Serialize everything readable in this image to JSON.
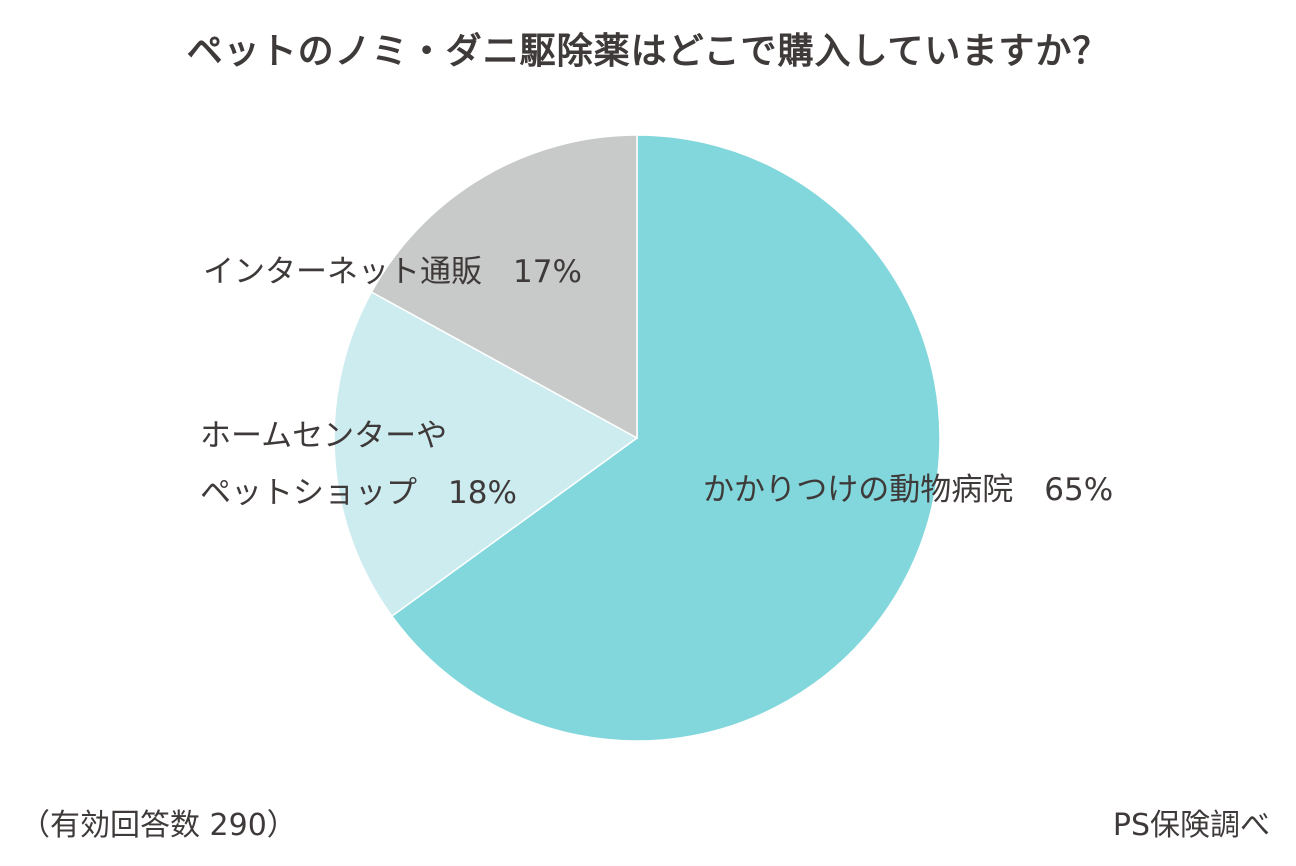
{
  "chart_data": {
    "type": "pie",
    "title": "ペットのノミ・ダニ駆除薬はどこで購入していますか？",
    "slices": [
      {
        "label_lines": [
          "かかりつけの動物病院　65%"
        ],
        "value": 65,
        "color": "#82d7dc"
      },
      {
        "label_lines": [
          "ホームセンターや",
          "ペットショップ　18%"
        ],
        "value": 18,
        "color": "#cdecf0"
      },
      {
        "label_lines": [
          "インターネット通販　17%"
        ],
        "value": 17,
        "color": "#c8c9c9"
      }
    ],
    "start_angle_deg": 0,
    "direction": "clockwise",
    "slice_border_color": "#ffffff"
  },
  "footer": {
    "sample_note": "（有効回答数 290）",
    "source": "PS保険調べ"
  }
}
